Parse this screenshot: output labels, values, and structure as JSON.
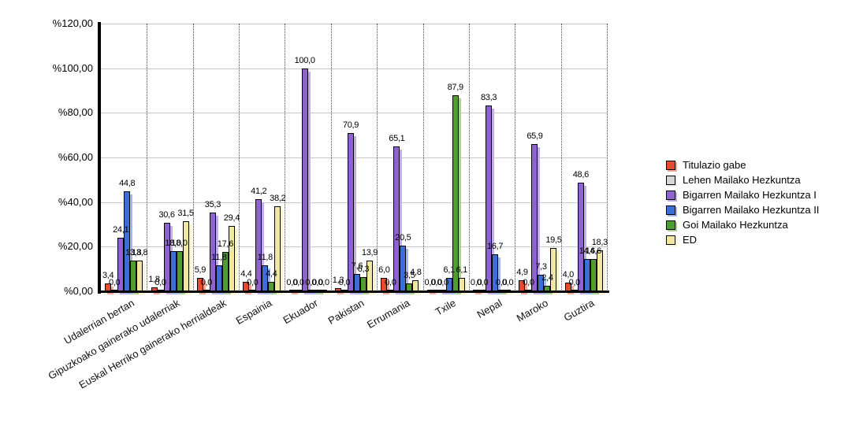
{
  "chart_data": {
    "type": "bar",
    "title": "",
    "xlabel": "",
    "ylabel": "",
    "ylim": [
      0,
      120
    ],
    "yticks": [
      "%120,00",
      "%100,00",
      "%80,00",
      "%60,00",
      "%40,00",
      "%20,00",
      "%0,00"
    ],
    "grid": "horizontal-solid, vertical-dotted-category-separators",
    "legend_position": "right",
    "value_labels": "above bars, decimal comma format",
    "categories": [
      "Udalerrian bertan",
      "Gipuzkoako gainerako udalerriak",
      "Euskal Herriko gainerako herrialdeak",
      "Espainia",
      "Ekuador",
      "Pakistan",
      "Errumania",
      "Txile",
      "Nepal",
      "Maroko",
      "Guztira"
    ],
    "series": [
      {
        "name": "Titulazio gabe",
        "color": "#e64a2e",
        "shadow": "#f4a898",
        "values": [
          3.4,
          1.8,
          5.9,
          4.4,
          0.0,
          1.3,
          6.0,
          0.0,
          0.0,
          4.9,
          4.0
        ]
      },
      {
        "name": "Lehen Mailako Hezkuntza",
        "color": "#d6d6d6",
        "shadow": "#ebebeb",
        "values": [
          0.0,
          0.0,
          0.0,
          0.0,
          0.0,
          0.0,
          0.0,
          0.0,
          0.0,
          0.0,
          0.0
        ]
      },
      {
        "name": "Bigarren Mailako Hezkuntza I",
        "color": "#8f62d2",
        "shadow": "#c4aeea",
        "values": [
          24.1,
          30.6,
          35.3,
          41.2,
          100.0,
          70.9,
          65.1,
          0.0,
          83.3,
          65.9,
          48.6
        ]
      },
      {
        "name": "Bigarren Mailako Hezkuntza II",
        "color": "#3b6fd7",
        "shadow": "#a2b9ee",
        "values": [
          44.8,
          18.0,
          11.8,
          11.8,
          0.0,
          7.6,
          20.5,
          6.1,
          16.7,
          7.3,
          14.6
        ]
      },
      {
        "name": "Goi Mailako Hezkuntza",
        "color": "#4f9c31",
        "shadow": "#aed098",
        "values": [
          13.8,
          18.0,
          17.6,
          4.4,
          0.0,
          6.3,
          3.5,
          87.9,
          0.0,
          2.4,
          14.6
        ]
      },
      {
        "name": "ED",
        "color": "#f0e89f",
        "shadow": "#f8f3d2",
        "values": [
          13.8,
          31.5,
          29.4,
          38.2,
          0.0,
          13.9,
          4.8,
          6.1,
          0.0,
          19.5,
          18.3
        ]
      }
    ]
  }
}
